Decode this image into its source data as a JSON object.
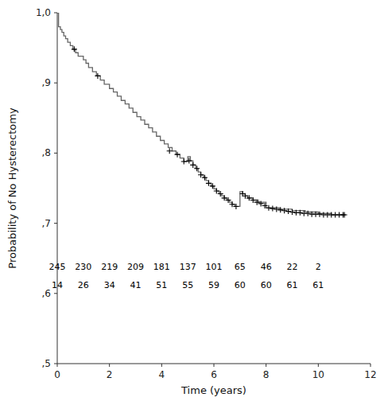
{
  "chart_data": {
    "type": "step",
    "xlabel": "Time (years)",
    "ylabel": "Probability of No Hysterectomy",
    "xlim": [
      0,
      12
    ],
    "ylim": [
      0.5,
      1.0
    ],
    "xticks": [
      0,
      2,
      4,
      6,
      8,
      10,
      12
    ],
    "yticks": [
      {
        "value": 0.5,
        "label": ",5"
      },
      {
        "value": 0.6,
        "label": ",6"
      },
      {
        "value": 0.7,
        "label": ",7"
      },
      {
        "value": 0.8,
        "label": ",8"
      },
      {
        "value": 0.9,
        "label": ",9"
      },
      {
        "value": 1.0,
        "label": "1,0"
      }
    ],
    "grid": false,
    "series": [
      {
        "type": "step",
        "color": "#666666",
        "line_style": "solid",
        "x": [
          0.0,
          0.05,
          0.12,
          0.18,
          0.25,
          0.32,
          0.4,
          0.5,
          0.6,
          0.7,
          0.8,
          1.0,
          1.1,
          1.2,
          1.35,
          1.5,
          1.65,
          1.8,
          2.0,
          2.15,
          2.3,
          2.45,
          2.6,
          2.75,
          2.9,
          3.05,
          3.2,
          3.35,
          3.5,
          3.65,
          3.8,
          3.95,
          4.1,
          4.25,
          4.4,
          4.55,
          4.7,
          4.85,
          5.0,
          5.1,
          5.2,
          5.3,
          5.4,
          5.5,
          5.6,
          5.7,
          5.8,
          5.9,
          6.0,
          6.1,
          6.2,
          6.3,
          6.4,
          6.5,
          6.6,
          6.7,
          6.8,
          7.0,
          7.1,
          7.2,
          7.3,
          7.5,
          7.7,
          8.0,
          8.5,
          9.0,
          9.5,
          10.0,
          10.5,
          11.0
        ],
        "values": [
          1.0,
          0.98,
          0.976,
          0.972,
          0.967,
          0.963,
          0.958,
          0.953,
          0.948,
          0.943,
          0.938,
          0.933,
          0.928,
          0.922,
          0.916,
          0.91,
          0.904,
          0.898,
          0.892,
          0.887,
          0.881,
          0.875,
          0.87,
          0.864,
          0.858,
          0.852,
          0.847,
          0.841,
          0.836,
          0.83,
          0.824,
          0.818,
          0.813,
          0.808,
          0.803,
          0.798,
          0.793,
          0.788,
          0.795,
          0.789,
          0.783,
          0.778,
          0.773,
          0.769,
          0.765,
          0.761,
          0.757,
          0.753,
          0.749,
          0.746,
          0.742,
          0.739,
          0.736,
          0.733,
          0.73,
          0.727,
          0.724,
          0.745,
          0.742,
          0.739,
          0.736,
          0.733,
          0.73,
          0.722,
          0.72,
          0.718,
          0.716,
          0.714,
          0.712,
          0.712
        ]
      },
      {
        "type": "scatter",
        "color": "#000000",
        "marker": "plus",
        "x": [
          0.65,
          1.55,
          4.3,
          4.6,
          4.85,
          5.05,
          5.2,
          5.35,
          5.5,
          5.65,
          5.8,
          5.95,
          6.1,
          6.25,
          6.4,
          6.55,
          6.7,
          6.85,
          7.1,
          7.2,
          7.35,
          7.5,
          7.65,
          7.8,
          7.95,
          8.1,
          8.25,
          8.4,
          8.55,
          8.7,
          8.85,
          9.0,
          9.15,
          9.3,
          9.45,
          9.6,
          9.75,
          9.9,
          10.05,
          10.2,
          10.35,
          10.5,
          10.65,
          10.8,
          10.95,
          11.0
        ],
        "values": [
          0.948,
          0.91,
          0.803,
          0.798,
          0.788,
          0.789,
          0.783,
          0.778,
          0.769,
          0.765,
          0.757,
          0.753,
          0.746,
          0.742,
          0.736,
          0.733,
          0.727,
          0.724,
          0.742,
          0.739,
          0.736,
          0.733,
          0.73,
          0.728,
          0.725,
          0.722,
          0.721,
          0.72,
          0.719,
          0.718,
          0.717,
          0.716,
          0.715,
          0.715,
          0.714,
          0.714,
          0.713,
          0.713,
          0.713,
          0.712,
          0.712,
          0.712,
          0.712,
          0.712,
          0.712,
          0.712
        ]
      }
    ],
    "annotations": [
      {
        "text": "245",
        "x": 0,
        "y": 0.638
      },
      {
        "text": "230",
        "x": 1,
        "y": 0.638
      },
      {
        "text": "219",
        "x": 2,
        "y": 0.638
      },
      {
        "text": "209",
        "x": 3,
        "y": 0.638
      },
      {
        "text": "181",
        "x": 4,
        "y": 0.638
      },
      {
        "text": "137",
        "x": 5,
        "y": 0.638
      },
      {
        "text": "101",
        "x": 6,
        "y": 0.638
      },
      {
        "text": "65",
        "x": 7,
        "y": 0.638
      },
      {
        "text": "46",
        "x": 8,
        "y": 0.638
      },
      {
        "text": "22",
        "x": 9,
        "y": 0.638
      },
      {
        "text": "2",
        "x": 10,
        "y": 0.638
      },
      {
        "text": "14",
        "x": 0,
        "y": 0.612
      },
      {
        "text": "26",
        "x": 1,
        "y": 0.612
      },
      {
        "text": "34",
        "x": 2,
        "y": 0.612
      },
      {
        "text": "41",
        "x": 3,
        "y": 0.612
      },
      {
        "text": "51",
        "x": 4,
        "y": 0.612
      },
      {
        "text": "55",
        "x": 5,
        "y": 0.612
      },
      {
        "text": "59",
        "x": 6,
        "y": 0.612
      },
      {
        "text": "60",
        "x": 7,
        "y": 0.612
      },
      {
        "text": "60",
        "x": 8,
        "y": 0.612
      },
      {
        "text": "61",
        "x": 9,
        "y": 0.612
      },
      {
        "text": "61",
        "x": 10,
        "y": 0.612
      }
    ]
  }
}
